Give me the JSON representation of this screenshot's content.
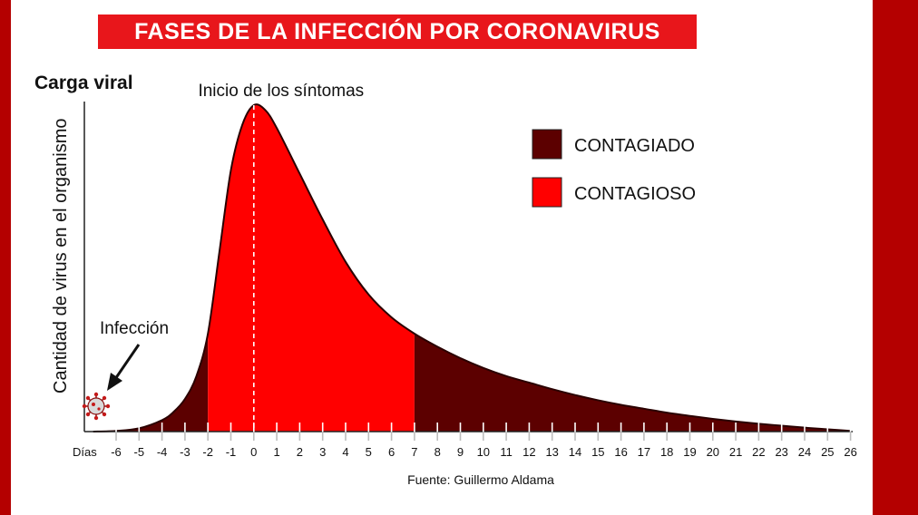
{
  "chart_data": {
    "type": "area",
    "title": "FASES DE LA INFECCIÓN POR CORONAVIRUS",
    "ylabel_top": "Carga viral",
    "ylabel": "Cantidad de virus en el organismo",
    "xlabel": "Días",
    "x_ticks": [
      -6,
      -5,
      -4,
      -3,
      -2,
      -1,
      0,
      1,
      2,
      3,
      4,
      5,
      6,
      7,
      8,
      9,
      10,
      11,
      12,
      13,
      14,
      15,
      16,
      17,
      18,
      19,
      20,
      21,
      22,
      23,
      24,
      25,
      26
    ],
    "x_range": [
      -7,
      26
    ],
    "y_range": [
      0,
      1
    ],
    "curve": {
      "x": [
        -7,
        -6,
        -5,
        -4,
        -3.5,
        -3,
        -2.5,
        -2,
        -1.5,
        -1,
        -0.5,
        0,
        0.5,
        1,
        2,
        3,
        4,
        5,
        6,
        7,
        8,
        9,
        10,
        11,
        12,
        13,
        14,
        15,
        16,
        17,
        18,
        19,
        20,
        21,
        22,
        23,
        24,
        25,
        26
      ],
      "y": [
        0,
        0.002,
        0.01,
        0.035,
        0.06,
        0.1,
        0.17,
        0.3,
        0.55,
        0.8,
        0.94,
        1.0,
        0.985,
        0.93,
        0.79,
        0.65,
        0.52,
        0.42,
        0.35,
        0.3,
        0.26,
        0.225,
        0.195,
        0.17,
        0.15,
        0.13,
        0.112,
        0.096,
        0.082,
        0.07,
        0.058,
        0.048,
        0.039,
        0.031,
        0.024,
        0.018,
        0.012,
        0.007,
        0.002
      ]
    },
    "phases": [
      {
        "name": "CONTAGIADO",
        "from": -7,
        "to": -2,
        "color": "#5c0000"
      },
      {
        "name": "CONTAGIOSO",
        "from": -2,
        "to": 7,
        "color": "#ff0000"
      },
      {
        "name": "CONTAGIADO",
        "from": 7,
        "to": 26,
        "color": "#5c0000"
      }
    ],
    "legend": [
      {
        "label": "CONTAGIADO",
        "color": "#5c0000"
      },
      {
        "label": "CONTAGIOSO",
        "color": "#ff0000"
      }
    ],
    "legend_position": "top-right",
    "annotations": {
      "symptom_onset": {
        "text": "Inicio de los síntomas",
        "x": 0
      },
      "infection": {
        "text": "Infección",
        "x": -7
      }
    },
    "source": "Fuente: Guillermo Aldama",
    "grid": false
  },
  "colors": {
    "frame": "#b40000",
    "banner": "#e8161b",
    "dark_red": "#5c0000",
    "bright_red": "#ff0000"
  },
  "icons": {
    "virus": "coronavirus-icon",
    "arrow": "arrow-down-left-icon"
  }
}
